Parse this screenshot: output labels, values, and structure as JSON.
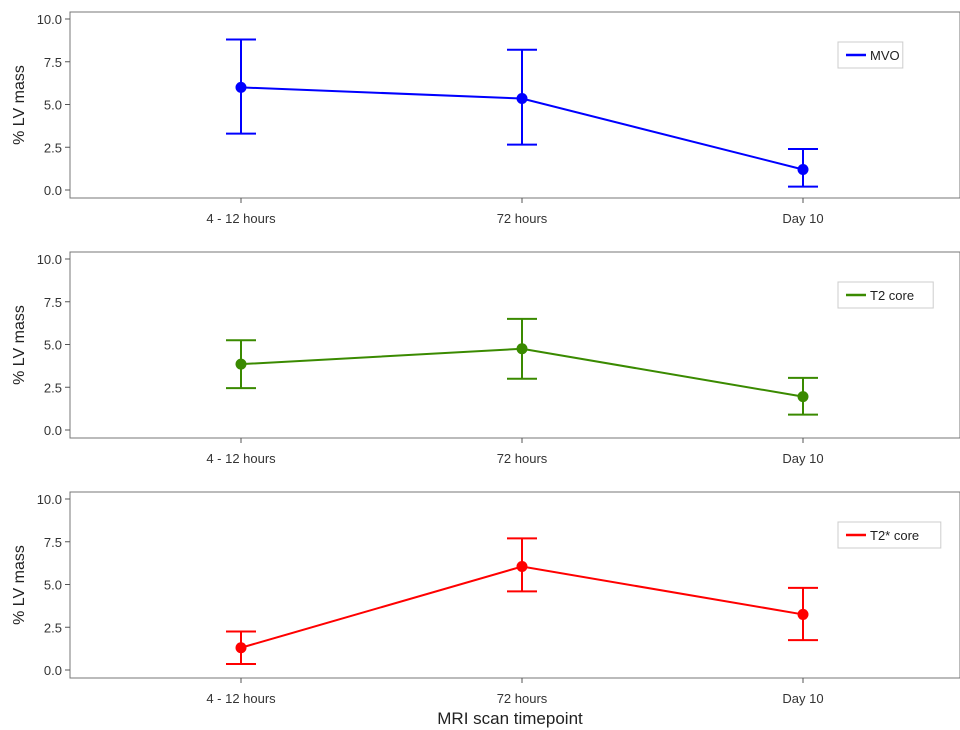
{
  "x_axis_title": "MRI scan timepoint",
  "chart_data": [
    {
      "type": "line",
      "categories": [
        "4 - 12 hours",
        "72 hours",
        "Day 10"
      ],
      "series": [
        {
          "name": "MVO",
          "color": "#0000ff",
          "values": [
            6.0,
            5.35,
            1.2
          ],
          "lower": [
            3.3,
            2.65,
            0.2
          ],
          "upper": [
            8.8,
            8.2,
            2.4
          ]
        }
      ],
      "ylabel": "% LV mass",
      "ylim": [
        0,
        10
      ],
      "yticks": [
        "0.0",
        "2.5",
        "5.0",
        "7.5",
        "10.0"
      ],
      "legend_position": "top-right",
      "grid": false
    },
    {
      "type": "line",
      "categories": [
        "4 - 12 hours",
        "72 hours",
        "Day 10"
      ],
      "series": [
        {
          "name": "T2 core",
          "color": "#3a8a00",
          "values": [
            3.85,
            4.75,
            1.95
          ],
          "lower": [
            2.45,
            3.0,
            0.9
          ],
          "upper": [
            5.25,
            6.5,
            3.05
          ]
        }
      ],
      "ylabel": "% LV mass",
      "ylim": [
        0,
        10
      ],
      "yticks": [
        "0.0",
        "2.5",
        "5.0",
        "7.5",
        "10.0"
      ],
      "legend_position": "top-right",
      "grid": false
    },
    {
      "type": "line",
      "categories": [
        "4 - 12 hours",
        "72 hours",
        "Day 10"
      ],
      "series": [
        {
          "name": "T2* core",
          "color": "#ff0000",
          "values": [
            1.3,
            6.05,
            3.25
          ],
          "lower": [
            0.35,
            4.6,
            1.75
          ],
          "upper": [
            2.25,
            7.7,
            4.8
          ]
        }
      ],
      "ylabel": "% LV mass",
      "ylim": [
        0,
        10
      ],
      "yticks": [
        "0.0",
        "2.5",
        "5.0",
        "7.5",
        "10.0"
      ],
      "legend_position": "top-right",
      "grid": false
    }
  ]
}
